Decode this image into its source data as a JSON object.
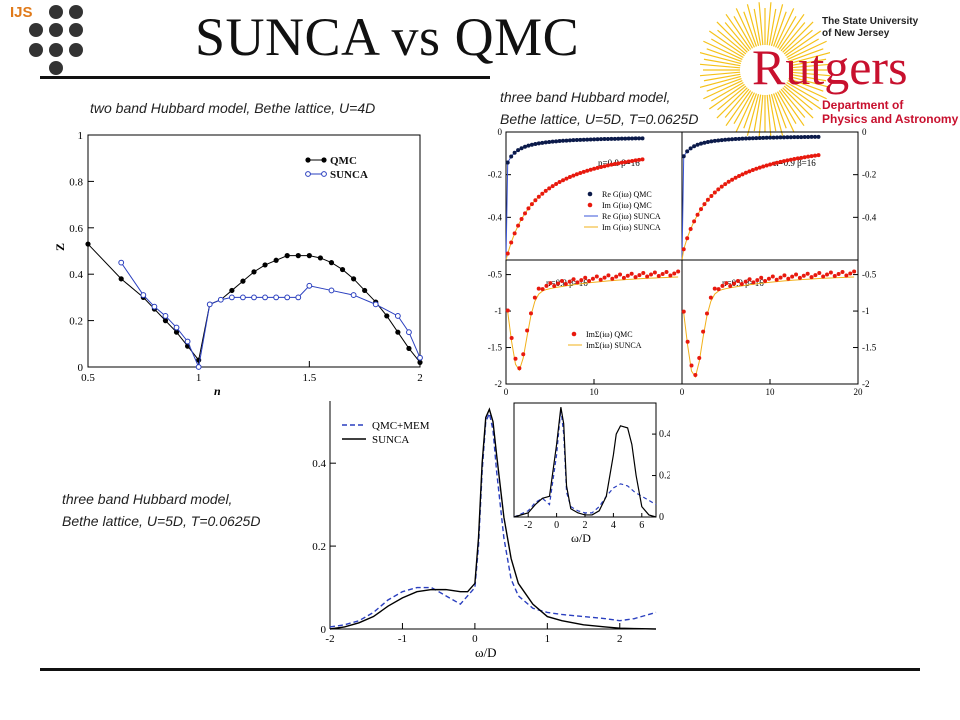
{
  "slide": {
    "title": "SUNCA vs QMC",
    "logo_left_text": "IJS",
    "university_line1": "The State University",
    "university_line2": "of New Jersey",
    "rutgers": "Rutgers",
    "department_line1": "Department of",
    "department_line2": "Physics and Astronomy",
    "caption_top_left": "two band Hubbard model, Bethe lattice, U=4D",
    "caption_top_right_line1": "three band Hubbard model,",
    "caption_top_right_line2": "Bethe lattice, U=5D, T=0.0625D",
    "caption_bottom_line1": "three band Hubbard model,",
    "caption_bottom_line2": "Bethe lattice, U=5D, T=0.0625D"
  },
  "colors": {
    "qmc": "#000000",
    "sunca": "#2a3fbf",
    "red": "#e8190e",
    "navy": "#0b1a4a",
    "orange": "#f2b01a",
    "rutgers_red": "#c8102e",
    "ijs_orange": "#e07a1a"
  },
  "chart_data": [
    {
      "type": "line",
      "xlabel": "n",
      "ylabel": "Z",
      "xlim": [
        0.5,
        2
      ],
      "ylim": [
        0,
        1
      ],
      "xticks": [
        "0.5",
        "1",
        "1.5",
        "2"
      ],
      "yticks": [
        "0",
        "0.2",
        "0.4",
        "0.6",
        "0.8",
        "1"
      ],
      "legend": [
        "QMC",
        "SUNCA"
      ],
      "legend_position": "top-right",
      "series": [
        {
          "name": "QMC",
          "x": [
            0.5,
            0.65,
            0.75,
            0.8,
            0.85,
            0.9,
            0.95,
            1.0,
            1.05,
            1.1,
            1.15,
            1.2,
            1.25,
            1.3,
            1.35,
            1.4,
            1.45,
            1.5,
            1.55,
            1.6,
            1.65,
            1.7,
            1.75,
            1.8,
            1.85,
            1.9,
            1.95,
            2.0
          ],
          "y": [
            0.53,
            0.38,
            0.3,
            0.25,
            0.2,
            0.15,
            0.09,
            0.03,
            0.27,
            0.29,
            0.33,
            0.37,
            0.41,
            0.44,
            0.46,
            0.48,
            0.48,
            0.48,
            0.47,
            0.45,
            0.42,
            0.38,
            0.33,
            0.28,
            0.22,
            0.15,
            0.08,
            0.02
          ]
        },
        {
          "name": "SUNCA",
          "x": [
            0.65,
            0.75,
            0.8,
            0.85,
            0.9,
            0.95,
            1.0,
            1.05,
            1.1,
            1.15,
            1.2,
            1.25,
            1.3,
            1.35,
            1.4,
            1.45,
            1.5,
            1.6,
            1.7,
            1.8,
            1.9,
            1.95,
            2.0
          ],
          "y": [
            0.45,
            0.31,
            0.26,
            0.22,
            0.17,
            0.11,
            0.0,
            0.27,
            0.29,
            0.3,
            0.3,
            0.3,
            0.3,
            0.3,
            0.3,
            0.3,
            0.35,
            0.33,
            0.31,
            0.27,
            0.22,
            0.15,
            0.04
          ]
        }
      ]
    },
    {
      "type": "scatter",
      "panel": "top-left",
      "annotation": "n=0.8  β=16",
      "xlim": [
        0,
        20
      ],
      "ylim": [
        -0.6,
        0
      ],
      "yticks": [
        "0",
        "-0.2",
        "-0.4"
      ],
      "legend": [
        "Re G(iω) QMC",
        "Im G(iω) QMC",
        "Re G(iω) SUNCA",
        "Im G(iω) SUNCA"
      ]
    },
    {
      "type": "scatter",
      "panel": "top-right",
      "annotation": "n=0.9  β=16",
      "xlim": [
        0,
        20
      ],
      "ylim": [
        -0.6,
        0
      ],
      "yticks": [
        "0",
        "-0.2",
        "-0.4"
      ]
    },
    {
      "type": "scatter",
      "panel": "bottom-left",
      "annotation": "n=0.8  β=16",
      "xlim": [
        0,
        20
      ],
      "ylim": [
        -2,
        -0.3
      ],
      "xticks": [
        "0",
        "10"
      ],
      "yticks": [
        "-0.5",
        "-1",
        "-1.5",
        "-2"
      ],
      "legend": [
        "ImΣ(iω)  QMC",
        "ImΣ(iω)  SUNCA"
      ]
    },
    {
      "type": "scatter",
      "panel": "bottom-right",
      "annotation": "n=0.9  β=16",
      "xlim": [
        0,
        20
      ],
      "ylim": [
        -2,
        -0.3
      ],
      "xticks": [
        "0",
        "10",
        "20"
      ],
      "yticks": [
        "-0.5",
        "-1",
        "-1.5",
        "-2"
      ]
    },
    {
      "type": "line",
      "xlabel": "ω/D",
      "xlim": [
        -2,
        2.5
      ],
      "ylim": [
        0,
        0.55
      ],
      "xticks": [
        "-2",
        "-1",
        "0",
        "1",
        "2"
      ],
      "yticks": [
        "0",
        "0.2",
        "0.4"
      ],
      "legend": [
        "QMC+MEM",
        "SUNCA"
      ],
      "legend_position": "top-left",
      "series": [
        {
          "name": "QMC+MEM",
          "x": [
            -2,
            -1.8,
            -1.6,
            -1.4,
            -1.2,
            -1.0,
            -0.8,
            -0.6,
            -0.4,
            -0.2,
            0,
            0.05,
            0.1,
            0.15,
            0.2,
            0.25,
            0.3,
            0.4,
            0.5,
            0.6,
            0.8,
            1.0,
            1.2,
            1.5,
            1.8,
            2.0,
            2.2,
            2.5
          ],
          "y": [
            0.005,
            0.01,
            0.02,
            0.04,
            0.07,
            0.09,
            0.1,
            0.1,
            0.08,
            0.06,
            0.1,
            0.2,
            0.38,
            0.5,
            0.52,
            0.48,
            0.38,
            0.22,
            0.12,
            0.08,
            0.05,
            0.04,
            0.035,
            0.03,
            0.025,
            0.02,
            0.025,
            0.04
          ]
        },
        {
          "name": "SUNCA",
          "x": [
            -2,
            -1.8,
            -1.6,
            -1.4,
            -1.2,
            -1.0,
            -0.8,
            -0.6,
            -0.4,
            -0.2,
            -0.1,
            0,
            0.05,
            0.1,
            0.15,
            0.2,
            0.25,
            0.3,
            0.4,
            0.5,
            0.6,
            0.8,
            1.0,
            1.2,
            1.5,
            1.8,
            2.0,
            2.2,
            2.5
          ],
          "y": [
            0.0,
            0.005,
            0.015,
            0.03,
            0.055,
            0.075,
            0.09,
            0.095,
            0.095,
            0.09,
            0.09,
            0.11,
            0.22,
            0.4,
            0.51,
            0.53,
            0.5,
            0.42,
            0.27,
            0.17,
            0.11,
            0.06,
            0.03,
            0.02,
            0.01,
            0.005,
            0.002,
            0.001,
            0.0
          ]
        }
      ]
    },
    {
      "type": "line",
      "panel": "inset",
      "xlabel": "ω/D",
      "xlim": [
        -3,
        7
      ],
      "ylim": [
        0,
        0.55
      ],
      "xticks": [
        "-2",
        "0",
        "2",
        "4",
        "6"
      ],
      "yticks": [
        "0",
        "0.2",
        "0.4"
      ],
      "series": [
        {
          "name": "QMC+MEM",
          "x": [
            -3,
            -2,
            -1.5,
            -1,
            -0.5,
            0,
            0.3,
            0.5,
            0.7,
            1,
            1.5,
            2,
            2.5,
            3,
            3.5,
            4,
            4.5,
            5,
            5.5,
            6,
            6.5,
            7
          ],
          "y": [
            0,
            0.03,
            0.07,
            0.09,
            0.06,
            0.3,
            0.52,
            0.4,
            0.12,
            0.05,
            0.03,
            0.02,
            0.02,
            0.05,
            0.1,
            0.14,
            0.16,
            0.15,
            0.12,
            0.1,
            0.08,
            0.06
          ]
        },
        {
          "name": "SUNCA",
          "x": [
            -3,
            -2,
            -1.5,
            -1,
            -0.5,
            0,
            0.3,
            0.5,
            0.7,
            1,
            1.5,
            2,
            2.5,
            3,
            3.5,
            4,
            4.2,
            4.5,
            5,
            5.3,
            5.6,
            6,
            6.5,
            7
          ],
          "y": [
            0,
            0.02,
            0.06,
            0.09,
            0.1,
            0.35,
            0.53,
            0.45,
            0.15,
            0.04,
            0.02,
            0.01,
            0.01,
            0.03,
            0.1,
            0.3,
            0.4,
            0.44,
            0.43,
            0.35,
            0.2,
            0.05,
            0.01,
            0
          ]
        }
      ]
    }
  ]
}
